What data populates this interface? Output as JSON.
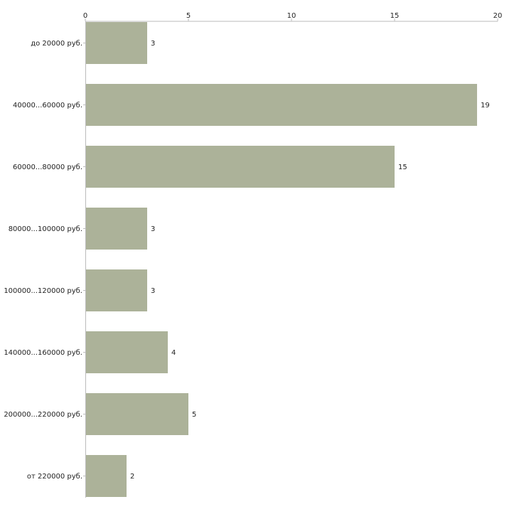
{
  "chart_data": {
    "type": "bar",
    "orientation": "horizontal",
    "title": "",
    "xlabel": "",
    "ylabel": "",
    "xlim": [
      0,
      20
    ],
    "ticks": [
      0,
      5,
      10,
      15,
      20
    ],
    "categories": [
      "до 20000 руб.",
      "40000...60000 руб.",
      "60000...80000 руб.",
      "80000...100000 руб.",
      "100000...120000 руб.",
      "140000...160000 руб.",
      "200000...220000 руб.",
      "от 220000 руб."
    ],
    "values": [
      3,
      19,
      15,
      3,
      3,
      4,
      5,
      2
    ],
    "grid": false,
    "bar_color": "#acb299",
    "axis_color": "#bbbbbb"
  }
}
